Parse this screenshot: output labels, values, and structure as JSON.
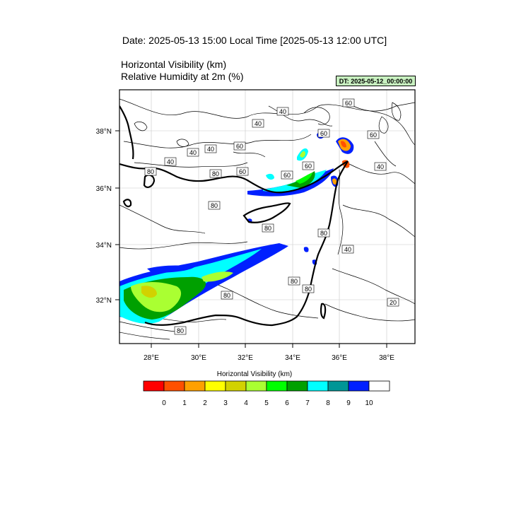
{
  "header": {
    "title": "Date: 2025-05-13  15:00 Local Time [2025-05-13  12:00 UTC]",
    "line1": "Horizontal Visibility   (km)",
    "line2": "Relative Humidity at 2m   (%)",
    "dt_label": "DT: 2025-05-12_00:00:00"
  },
  "map": {
    "lat_labels": [
      "38°N",
      "36°N",
      "34°N",
      "32°N"
    ],
    "lon_labels": [
      "28°E",
      "30°E",
      "32°E",
      "34°E",
      "36°E",
      "38°E"
    ],
    "contour_labels": [
      "20",
      "40",
      "40",
      "40",
      "40",
      "40",
      "40",
      "40",
      "60",
      "60",
      "60",
      "60",
      "60",
      "60",
      "60",
      "80",
      "80",
      "80",
      "80",
      "80",
      "80",
      "80",
      "80",
      "80"
    ]
  },
  "colorbar": {
    "title": "Horizontal Visibility  (km)",
    "colors": [
      "#ff0000",
      "#ff5000",
      "#ffa000",
      "#ffff00",
      "#d2d200",
      "#aaff32",
      "#00ff00",
      "#00a000",
      "#00ffff",
      "#009696",
      "#0020ff",
      "#ffffff"
    ],
    "tick_labels": [
      "0",
      "1",
      "2",
      "3",
      "4",
      "5",
      "6",
      "7",
      "8",
      "9",
      "10"
    ]
  }
}
